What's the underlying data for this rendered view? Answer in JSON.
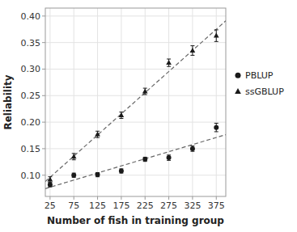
{
  "chart_data": {
    "type": "scatter",
    "xlabel": "Number of fish in training group",
    "ylabel": "Reliability",
    "x": [
      25,
      75,
      125,
      175,
      225,
      275,
      325,
      375
    ],
    "series": [
      {
        "name": "PBLUP",
        "color": "#1a1a1a",
        "marker": "circle",
        "values": [
          0.082,
          0.1,
          0.101,
          0.108,
          0.13,
          0.133,
          0.15,
          0.19
        ],
        "error": [
          0.004,
          0.004,
          0.004,
          0.004,
          0.004,
          0.005,
          0.005,
          0.008
        ]
      },
      {
        "name": "ssGBLUP",
        "color": "#1a1a1a",
        "marker": "triangle",
        "values": [
          0.092,
          0.135,
          0.177,
          0.213,
          0.258,
          0.312,
          0.335,
          0.363
        ],
        "error": [
          0.005,
          0.006,
          0.006,
          0.006,
          0.006,
          0.007,
          0.009,
          0.011
        ]
      },
      {
        "type": "line",
        "line_style": "dashed",
        "color": "#666666",
        "x": [
          15,
          395
        ],
        "values": [
          0.07474048,
          0.17643571
        ]
      },
      {
        "type": "line",
        "line_style": "dashed",
        "color": "#666666",
        "x": [
          15,
          395
        ],
        "values": [
          0.08819762,
          0.39102143
        ]
      }
    ],
    "xlim": [
      15,
      395
    ],
    "ylim": [
      0.06,
      0.415
    ],
    "xticks": [
      25,
      75,
      125,
      175,
      225,
      275,
      325,
      375
    ],
    "yticks": [
      {
        "value": 0.1,
        "label": "0.10"
      },
      0.15,
      {
        "value": 0.2,
        "label": "0.20"
      },
      0.25,
      {
        "value": 0.3,
        "label": "0.30"
      },
      0.35,
      {
        "value": 0.4,
        "label": "0.40"
      }
    ],
    "grid": true,
    "legend": "right"
  }
}
